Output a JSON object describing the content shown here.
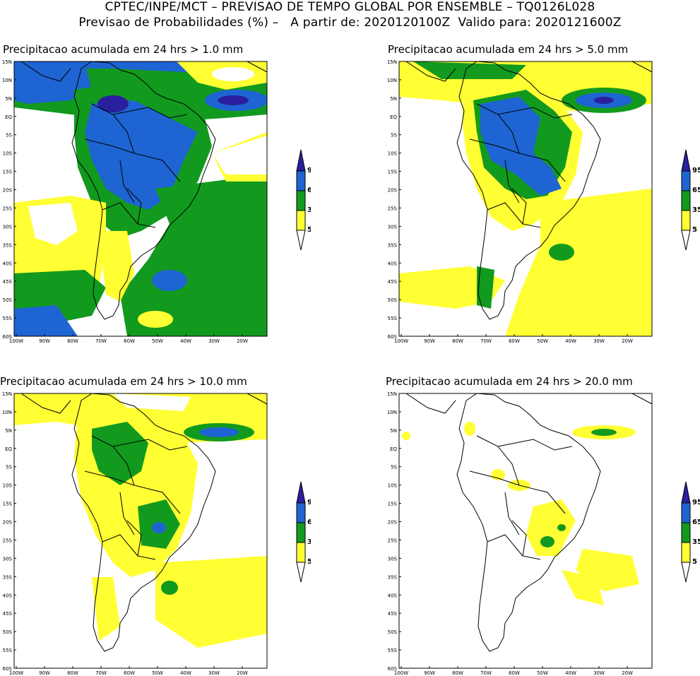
{
  "header": {
    "line1": "CPTEC/INPE/MCT – PREVISAO DE TEMPO GLOBAL POR ENSEMBLE – TQ0126L028",
    "line2": "Previsao de Probabilidades (%) –   A partir de: 2020120100Z  Valido para: 2020121600Z"
  },
  "panels": [
    {
      "title": "Precipitacao acumulada em 24 hrs > 1.0 mm"
    },
    {
      "title": "Precipitacao acumulada em 24 hrs > 5.0 mm"
    },
    {
      "title": "Precipitacao acumulada em 24 hrs > 10.0 mm"
    },
    {
      "title": "Precipitacao acumulada em 24 hrs > 20.0 mm"
    }
  ],
  "lat_labels": [
    "15N",
    "10N",
    "5N",
    "EQ",
    "5S",
    "10S",
    "15S",
    "20S",
    "25S",
    "30S",
    "35S",
    "40S",
    "45S",
    "50S",
    "55S",
    "60S"
  ],
  "lon_labels": [
    "100W",
    "90W",
    "80W",
    "70W",
    "60W",
    "50W",
    "40W",
    "30W",
    "20W"
  ],
  "colorbar": {
    "labels": [
      "95",
      "65",
      "35",
      "5"
    ],
    "colors": {
      "c95": "#2a1f9e",
      "c65": "#1e64d2",
      "c35": "#129a1e",
      "c5": "#ffff33"
    }
  }
}
